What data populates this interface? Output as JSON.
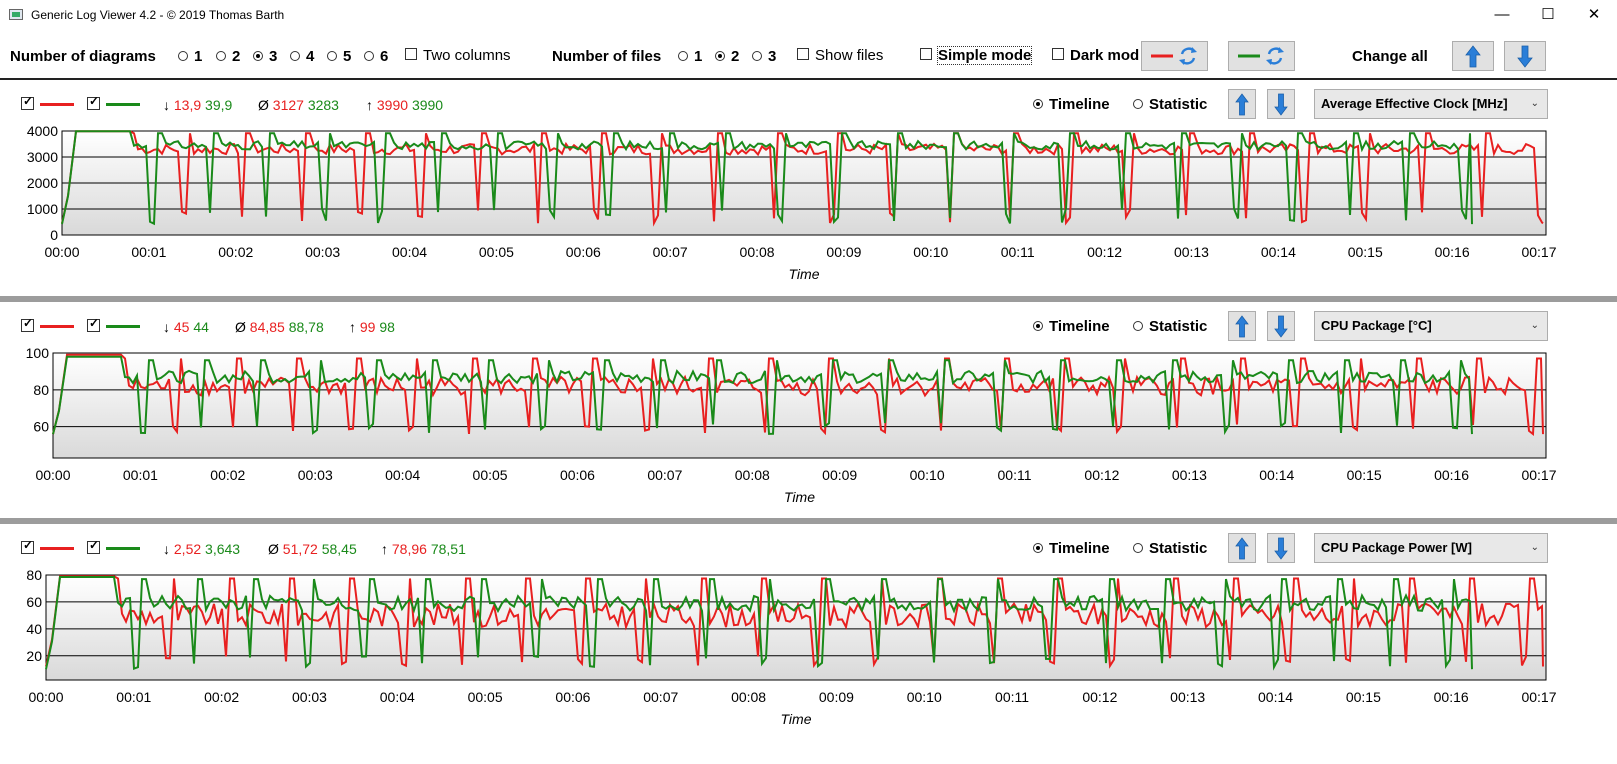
{
  "window": {
    "title": "Generic Log Viewer 4.2 - © 2019 Thomas Barth",
    "minimize": "—",
    "maximize": "☐",
    "close": "✕"
  },
  "toolbar": {
    "num_diagrams_label": "Number of diagrams",
    "diagram_options": [
      "1",
      "2",
      "3",
      "4",
      "5",
      "6"
    ],
    "diagram_selected": "3",
    "two_columns": "Two columns",
    "num_files_label": "Number of files",
    "file_options": [
      "1",
      "2",
      "3"
    ],
    "file_selected": "2",
    "show_files": "Show files",
    "simple_mode": "Simple mode",
    "dark_mode": "Dark mod",
    "change_all": "Change all"
  },
  "colors": {
    "file1": "#e82020",
    "file2": "#1a8a1a",
    "arrow": "#2a7ed8"
  },
  "panels": [
    {
      "min_red": "13,9",
      "min_green": "39,9",
      "avg_red": "3127",
      "avg_green": "3283",
      "max_red": "3990",
      "max_green": "3990",
      "mode_timeline": "Timeline",
      "mode_statistic": "Statistic",
      "sensor": "Average Effective Clock [MHz]",
      "xlabel": "Time",
      "yticks": [
        "4000",
        "3000",
        "2000",
        "1000",
        "0"
      ],
      "ymin": 0,
      "ymax": 4000,
      "yvals": [
        4000,
        3000,
        2000,
        1000,
        0
      ],
      "red_high": 3990,
      "red_low": 450,
      "green_high": 3990,
      "green_low": 420,
      "red_mid": 3300,
      "green_mid": 3450,
      "xticks": [
        "00:00",
        "00:01",
        "00:02",
        "00:03",
        "00:04",
        "00:05",
        "00:06",
        "00:07",
        "00:08",
        "00:09",
        "00:10",
        "00:11",
        "00:12",
        "00:13",
        "00:14",
        "00:15",
        "00:16",
        "00:17"
      ]
    },
    {
      "min_red": "45",
      "min_green": "44",
      "avg_red": "84,85",
      "avg_green": "88,78",
      "max_red": "99",
      "max_green": "98",
      "mode_timeline": "Timeline",
      "mode_statistic": "Statistic",
      "sensor": "CPU Package [°C]",
      "xlabel": "Time",
      "yticks": [
        "100",
        "80",
        "60"
      ],
      "ymin": 43,
      "ymax": 100,
      "yvals": [
        100,
        80,
        60
      ],
      "red_high": 99,
      "red_low": 56,
      "green_high": 98,
      "green_low": 56,
      "red_mid": 82,
      "green_mid": 87,
      "xticks": [
        "00:00",
        "00:01",
        "00:02",
        "00:03",
        "00:04",
        "00:05",
        "00:06",
        "00:07",
        "00:08",
        "00:09",
        "00:10",
        "00:11",
        "00:12",
        "00:13",
        "00:14",
        "00:15",
        "00:16",
        "00:17"
      ]
    },
    {
      "min_red": "2,52",
      "min_green": "3,643",
      "avg_red": "51,72",
      "avg_green": "58,45",
      "max_red": "78,96",
      "max_green": "78,51",
      "mode_timeline": "Timeline",
      "mode_statistic": "Statistic",
      "sensor": "CPU Package Power [W]",
      "xlabel": "Time",
      "yticks": [
        "80",
        "60",
        "40",
        "20"
      ],
      "ymin": 2,
      "ymax": 80,
      "yvals": [
        80,
        60,
        40,
        20
      ],
      "red_high": 79,
      "red_low": 12,
      "green_high": 78.5,
      "green_low": 10,
      "red_mid": 50,
      "green_mid": 59,
      "xticks": [
        "00:00",
        "00:01",
        "00:02",
        "00:03",
        "00:04",
        "00:05",
        "00:06",
        "00:07",
        "00:08",
        "00:09",
        "00:10",
        "00:11",
        "00:12",
        "00:13",
        "00:14",
        "00:15",
        "00:16",
        "00:17"
      ]
    }
  ]
}
